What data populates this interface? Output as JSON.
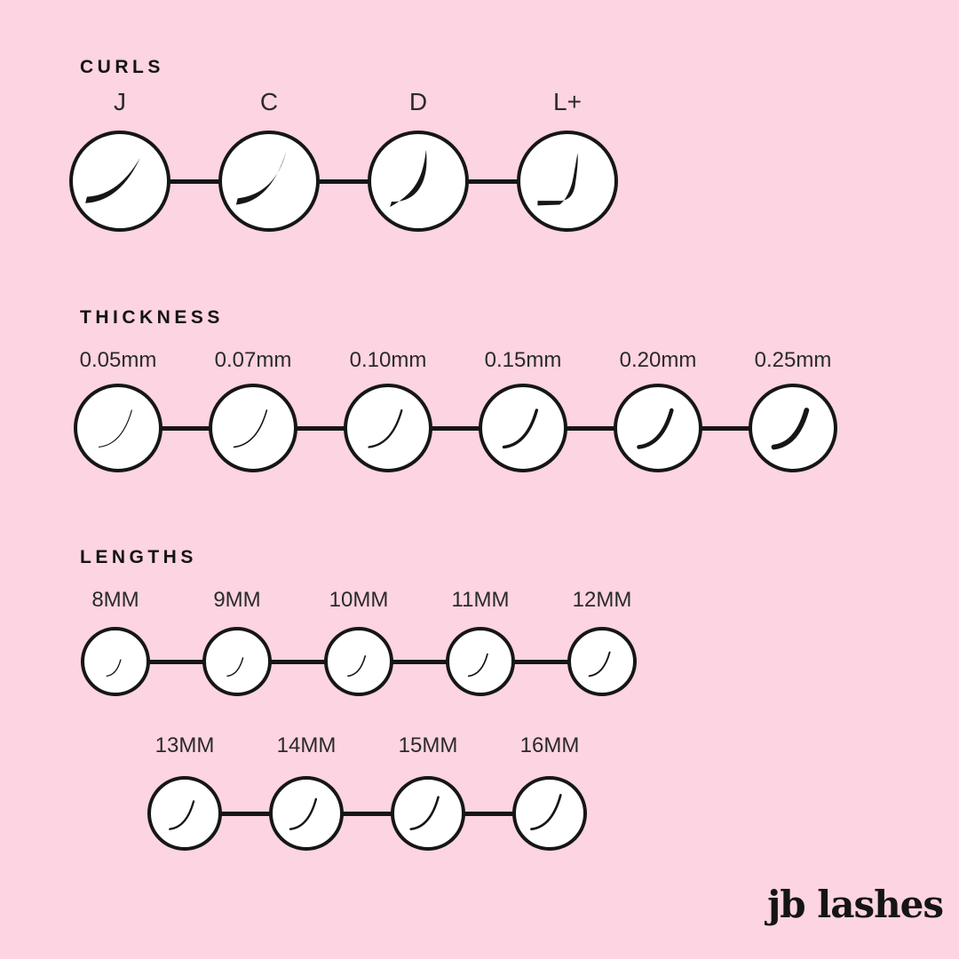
{
  "palette": {
    "background": "#FDD4E1",
    "ink": "#161616",
    "circle_fill": "#FFFFFF"
  },
  "sections": {
    "curls": {
      "title": "CURLS",
      "items": [
        {
          "label": "J",
          "icon": "lash-curl-j-icon"
        },
        {
          "label": "C",
          "icon": "lash-curl-c-icon"
        },
        {
          "label": "D",
          "icon": "lash-curl-d-icon"
        },
        {
          "label": "L+",
          "icon": "lash-curl-lplus-icon"
        }
      ]
    },
    "thickness": {
      "title": "THICKNESS",
      "items": [
        {
          "label": "0.05mm",
          "icon": "lash-thickness-005-icon"
        },
        {
          "label": "0.07mm",
          "icon": "lash-thickness-007-icon"
        },
        {
          "label": "0.10mm",
          "icon": "lash-thickness-010-icon"
        },
        {
          "label": "0.15mm",
          "icon": "lash-thickness-015-icon"
        },
        {
          "label": "0.20mm",
          "icon": "lash-thickness-020-icon"
        },
        {
          "label": "0.25mm",
          "icon": "lash-thickness-025-icon"
        }
      ]
    },
    "lengths": {
      "title": "LENGTHS",
      "rows": [
        [
          {
            "label": "8MM",
            "icon": "lash-length-8-icon"
          },
          {
            "label": "9MM",
            "icon": "lash-length-9-icon"
          },
          {
            "label": "10MM",
            "icon": "lash-length-10-icon"
          },
          {
            "label": "11MM",
            "icon": "lash-length-11-icon"
          },
          {
            "label": "12MM",
            "icon": "lash-length-12-icon"
          }
        ],
        [
          {
            "label": "13MM",
            "icon": "lash-length-13-icon"
          },
          {
            "label": "14MM",
            "icon": "lash-length-14-icon"
          },
          {
            "label": "15MM",
            "icon": "lash-length-15-icon"
          },
          {
            "label": "16MM",
            "icon": "lash-length-16-icon"
          }
        ]
      ]
    }
  },
  "logo": {
    "text": "jb lashes"
  }
}
